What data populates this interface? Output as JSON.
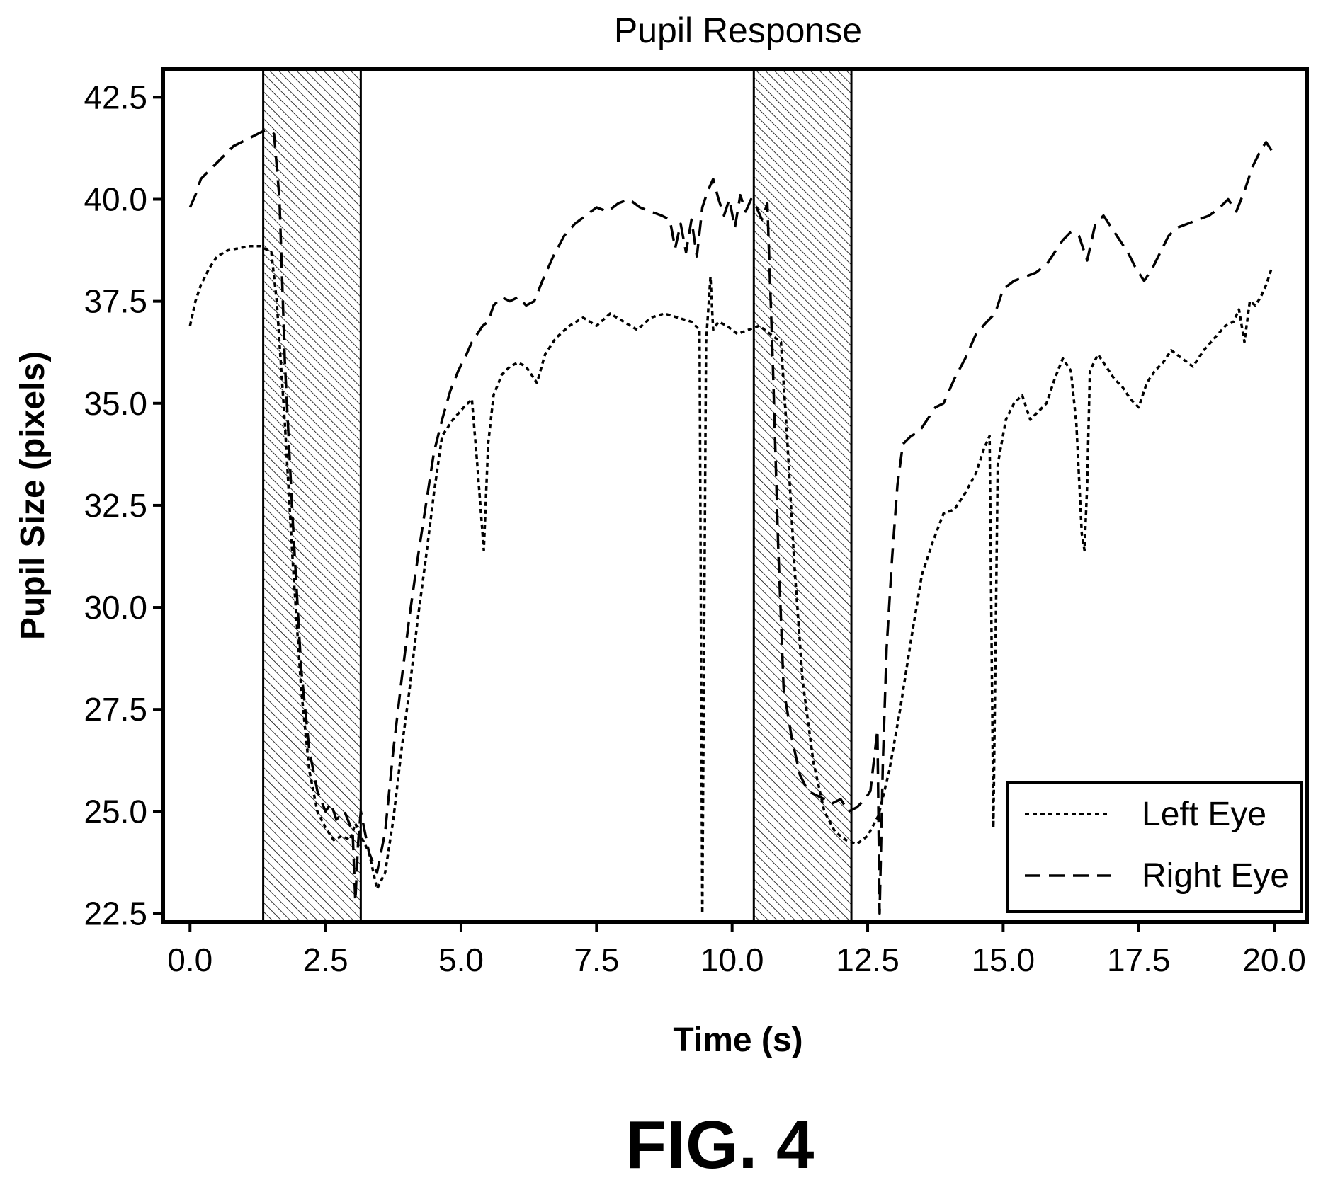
{
  "figure_caption": "FIG. 4",
  "chart_data": {
    "type": "line",
    "title": "Pupil Response",
    "xlabel": "Time (s)",
    "ylabel": "Pupil Size (pixels)",
    "xlim": [
      -0.5,
      20.6
    ],
    "ylim": [
      22.3,
      43.2
    ],
    "xticks": [
      0.0,
      2.5,
      5.0,
      7.5,
      10.0,
      12.5,
      15.0,
      17.5,
      20.0
    ],
    "xtick_labels": [
      "0.0",
      "2.5",
      "5.0",
      "7.5",
      "10.0",
      "12.5",
      "15.0",
      "17.5",
      "20.0"
    ],
    "yticks": [
      22.5,
      25.0,
      27.5,
      30.0,
      32.5,
      35.0,
      37.5,
      40.0,
      42.5
    ],
    "ytick_labels": [
      "22.5",
      "25.0",
      "27.5",
      "30.0",
      "32.5",
      "35.0",
      "37.5",
      "40.0",
      "42.5"
    ],
    "grid": false,
    "legend_position": "bottom-right",
    "shaded_intervals": [
      {
        "x0": 1.35,
        "x1": 3.15
      },
      {
        "x0": 10.4,
        "x1": 12.2
      }
    ],
    "series": [
      {
        "name": "Left Eye",
        "style": "dotted",
        "color": "#000000",
        "x": [
          0.0,
          0.1,
          0.2,
          0.35,
          0.5,
          0.7,
          0.9,
          1.1,
          1.3,
          1.5,
          1.6,
          1.75,
          1.9,
          2.05,
          2.2,
          2.35,
          2.5,
          2.65,
          2.8,
          2.95,
          3.05,
          3.15,
          3.3,
          3.45,
          3.6,
          3.75,
          3.9,
          4.05,
          4.2,
          4.35,
          4.5,
          4.65,
          4.85,
          5.05,
          5.2,
          5.3,
          5.42,
          5.5,
          5.6,
          5.75,
          5.9,
          6.05,
          6.2,
          6.4,
          6.55,
          6.75,
          7.0,
          7.25,
          7.5,
          7.75,
          8.0,
          8.25,
          8.5,
          8.75,
          9.0,
          9.25,
          9.4,
          9.45,
          9.52,
          9.6,
          9.65,
          9.75,
          9.9,
          10.1,
          10.3,
          10.5,
          10.7,
          10.9,
          11.0,
          11.15,
          11.3,
          11.5,
          11.7,
          11.9,
          12.1,
          12.3,
          12.5,
          12.7,
          12.9,
          13.1,
          13.3,
          13.5,
          13.7,
          13.9,
          14.1,
          14.3,
          14.5,
          14.65,
          14.75,
          14.82,
          14.9,
          15.05,
          15.2,
          15.35,
          15.5,
          15.65,
          15.8,
          15.95,
          16.1,
          16.25,
          16.35,
          16.45,
          16.5,
          16.55,
          16.6,
          16.75,
          16.9,
          17.05,
          17.2,
          17.35,
          17.5,
          17.65,
          17.8,
          17.95,
          18.1,
          18.3,
          18.5,
          18.7,
          18.9,
          19.1,
          19.25,
          19.35,
          19.45,
          19.55,
          19.65,
          19.75,
          19.85,
          19.95
        ],
        "y": [
          36.9,
          37.5,
          37.9,
          38.3,
          38.6,
          38.75,
          38.8,
          38.85,
          38.85,
          38.7,
          37.5,
          34.5,
          31.0,
          28.0,
          26.0,
          25.0,
          24.6,
          24.3,
          24.4,
          24.3,
          24.7,
          24.4,
          24.0,
          23.1,
          23.5,
          24.8,
          26.5,
          28.0,
          29.7,
          31.2,
          32.8,
          34.2,
          34.6,
          34.9,
          35.1,
          33.5,
          31.4,
          34.0,
          35.2,
          35.7,
          35.9,
          36.0,
          35.9,
          35.5,
          36.2,
          36.6,
          36.9,
          37.1,
          36.9,
          37.2,
          37.0,
          36.8,
          37.1,
          37.2,
          37.1,
          37.0,
          36.8,
          22.5,
          36.5,
          38.1,
          36.8,
          37.0,
          36.9,
          36.7,
          36.8,
          36.9,
          36.7,
          36.5,
          34.5,
          31.0,
          28.2,
          26.2,
          25.0,
          24.5,
          24.3,
          24.2,
          24.4,
          24.9,
          26.0,
          27.5,
          29.2,
          30.8,
          31.6,
          32.3,
          32.4,
          32.8,
          33.3,
          33.9,
          34.2,
          24.6,
          33.5,
          34.6,
          35.0,
          35.2,
          34.6,
          34.8,
          35.0,
          35.6,
          36.1,
          35.8,
          34.5,
          31.8,
          31.4,
          33.0,
          35.8,
          36.2,
          35.9,
          35.6,
          35.4,
          35.1,
          34.9,
          35.5,
          35.8,
          36.0,
          36.3,
          36.1,
          35.9,
          36.3,
          36.6,
          36.9,
          37.0,
          37.3,
          36.5,
          37.5,
          37.4,
          37.6,
          37.9,
          38.3
        ],
        "line_dash": "6 5"
      },
      {
        "name": "Right Eye",
        "style": "dashed",
        "color": "#000000",
        "x": [
          0.0,
          0.1,
          0.2,
          0.35,
          0.5,
          0.65,
          0.8,
          0.95,
          1.1,
          1.25,
          1.4,
          1.55,
          1.65,
          1.75,
          1.9,
          2.05,
          2.2,
          2.35,
          2.5,
          2.6,
          2.7,
          2.85,
          3.0,
          3.05,
          3.1,
          3.15,
          3.3,
          3.45,
          3.6,
          3.75,
          3.9,
          4.05,
          4.2,
          4.35,
          4.5,
          4.65,
          4.8,
          4.95,
          5.1,
          5.2,
          5.3,
          5.4,
          5.5,
          5.6,
          5.75,
          5.9,
          6.05,
          6.2,
          6.35,
          6.5,
          6.7,
          6.9,
          7.1,
          7.3,
          7.5,
          7.7,
          7.9,
          8.1,
          8.3,
          8.5,
          8.7,
          8.85,
          8.95,
          9.05,
          9.15,
          9.25,
          9.35,
          9.45,
          9.55,
          9.65,
          9.75,
          9.85,
          9.95,
          10.05,
          10.15,
          10.25,
          10.35,
          10.45,
          10.55,
          10.65,
          10.75,
          10.85,
          10.95,
          11.1,
          11.25,
          11.4,
          11.55,
          11.7,
          11.85,
          12.0,
          12.15,
          12.3,
          12.45,
          12.55,
          12.62,
          12.68,
          12.72,
          12.78,
          12.85,
          12.95,
          13.05,
          13.15,
          13.3,
          13.45,
          13.6,
          13.75,
          13.9,
          14.1,
          14.3,
          14.5,
          14.7,
          14.85,
          15.0,
          15.2,
          15.4,
          15.6,
          15.8,
          15.95,
          16.1,
          16.25,
          16.4,
          16.55,
          16.7,
          16.85,
          17.0,
          17.15,
          17.3,
          17.45,
          17.6,
          17.75,
          17.9,
          18.05,
          18.2,
          18.4,
          18.6,
          18.8,
          19.0,
          19.15,
          19.3,
          19.45,
          19.6,
          19.75,
          19.85,
          19.95
        ],
        "y": [
          39.8,
          40.1,
          40.5,
          40.7,
          40.9,
          41.1,
          41.3,
          41.4,
          41.5,
          41.6,
          41.7,
          41.6,
          40.0,
          36.0,
          32.0,
          28.5,
          26.5,
          25.5,
          25.0,
          25.2,
          24.8,
          25.0,
          24.5,
          22.8,
          24.2,
          25.0,
          24.0,
          23.5,
          24.5,
          26.5,
          28.2,
          29.8,
          31.2,
          32.5,
          33.8,
          34.6,
          35.3,
          35.8,
          36.2,
          36.5,
          36.7,
          36.9,
          37.0,
          37.4,
          37.6,
          37.5,
          37.6,
          37.4,
          37.5,
          38.0,
          38.6,
          39.1,
          39.4,
          39.6,
          39.8,
          39.7,
          39.9,
          40.0,
          39.8,
          39.7,
          39.6,
          39.5,
          38.8,
          39.4,
          38.7,
          39.5,
          38.6,
          39.8,
          40.2,
          40.5,
          40.0,
          39.6,
          40.0,
          39.3,
          40.1,
          39.7,
          40.0,
          39.8,
          39.5,
          39.9,
          36.0,
          31.5,
          28.0,
          26.8,
          25.9,
          25.5,
          25.4,
          25.3,
          25.2,
          25.3,
          25.0,
          25.1,
          25.3,
          25.5,
          26.3,
          27.0,
          22.5,
          26.2,
          29.0,
          31.2,
          33.0,
          34.0,
          34.2,
          34.3,
          34.6,
          34.9,
          35.0,
          35.6,
          36.1,
          36.7,
          37.0,
          37.2,
          37.8,
          38.0,
          38.1,
          38.2,
          38.4,
          38.7,
          39.0,
          39.2,
          39.1,
          38.5,
          39.4,
          39.6,
          39.3,
          39.0,
          38.7,
          38.3,
          38.0,
          38.3,
          38.7,
          39.1,
          39.3,
          39.4,
          39.5,
          39.6,
          39.8,
          40.0,
          39.7,
          40.2,
          40.8,
          41.2,
          41.4,
          41.2
        ],
        "line_dash": "22 12"
      }
    ]
  }
}
